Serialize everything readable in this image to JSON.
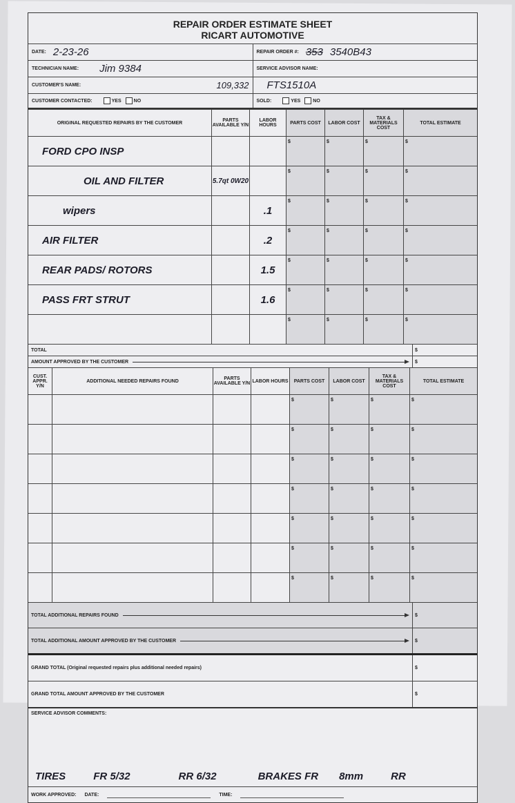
{
  "form": {
    "title": "REPAIR ORDER ESTIMATE SHEET",
    "company": "RICART AUTOMOTIVE",
    "date_label": "DATE:",
    "date_value": "2-23-26",
    "repair_order_label": "REPAIR ORDER #:",
    "repair_order_value": "3540B43",
    "repair_order_struck": "353",
    "technician_label": "TECHNICIAN NAME:",
    "technician_value": "Jim 9384",
    "service_advisor_label": "SERVICE ADVISOR NAME:",
    "customer_label": "CUSTOMER'S NAME:",
    "mileage_value": "109,332",
    "vehicle_code_value": "FTS1510A",
    "contacted_label": "CUSTOMER CONTACTED:",
    "sold_label": "SOLD:",
    "yes_label": "YES",
    "no_label": "NO"
  },
  "section1": {
    "headers": [
      "ORIGINAL REQUESTED REPAIRS BY THE CUSTOMER",
      "PARTS AVAILABLE Y/N",
      "LABOR HOURS",
      "PARTS COST",
      "LABOR COST",
      "TAX & MATERIALS COST",
      "TOTAL ESTIMATE"
    ],
    "rows": [
      {
        "desc": "FORD CPO INSP",
        "parts": "",
        "labor": ""
      },
      {
        "desc": "OIL AND FILTER",
        "parts": "5.7qt 0W20",
        "labor": ""
      },
      {
        "desc": "wipers",
        "parts": "",
        "labor": ".1"
      },
      {
        "desc": "AIR FILTER",
        "parts": "",
        "labor": ".2"
      },
      {
        "desc": "REAR PADS/ ROTORS",
        "parts": "",
        "labor": "1.5"
      },
      {
        "desc": "PASS FRT STRUT",
        "parts": "",
        "labor": "1.6"
      },
      {
        "desc": "",
        "parts": "",
        "labor": ""
      }
    ],
    "currency": "$",
    "total_label": "TOTAL",
    "approved_label": "AMOUNT APPROVED BY THE CUSTOMER"
  },
  "section2": {
    "headers": [
      "CUST. APPR. Y/N",
      "ADDITIONAL NEEDED REPAIRS FOUND",
      "PARTS AVAILABLE Y/N",
      "LABOR HOURS",
      "PARTS COST",
      "LABOR COST",
      "TAX & MATERIALS COST",
      "TOTAL ESTIMATE"
    ],
    "row_count": 7,
    "total_additional_label": "TOTAL ADDITIONAL REPAIRS FOUND",
    "total_additional_approved_label": "TOTAL ADDITIONAL AMOUNT APPROVED BY THE CUSTOMER",
    "grand_total_label": "GRAND TOTAL (Original requested repairs plus additional needed repairs)",
    "grand_total_approved_label": "GRAND TOTAL AMOUNT APPROVED BY THE CUSTOMER"
  },
  "comments": {
    "label": "SERVICE ADVISOR COMMENTS:",
    "notes": [
      "TIRES",
      "FR 5/32",
      "RR 6/32",
      "BRAKES FR",
      "8mm",
      "RR"
    ]
  },
  "footer": {
    "work_approved_label": "WORK APPROVED:",
    "date_label": "DATE:",
    "time_label": "TIME:"
  }
}
